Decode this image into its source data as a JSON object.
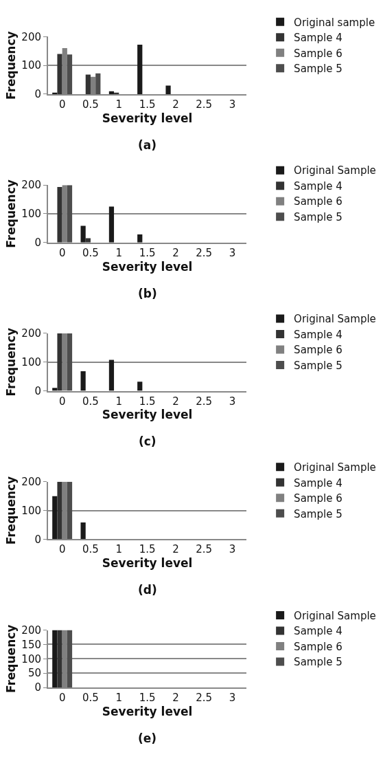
{
  "chart_data": [
    {
      "type": "bar",
      "categories": [
        "0",
        "0.5",
        "1",
        "1.5",
        "2",
        "2.5",
        "3"
      ],
      "xlabel": "Severity level",
      "ylabel": "Frequency",
      "ylim": [
        0,
        200
      ],
      "yticks": [
        0,
        100,
        200
      ],
      "grid": "y",
      "legend": "right",
      "annotations": [
        "(a)"
      ],
      "series": [
        {
          "name": "Original sample",
          "color": "#1a1a1a",
          "values": [
            5,
            0,
            10,
            172,
            30,
            0,
            0
          ]
        },
        {
          "name": "Sample 4",
          "color": "#333333",
          "values": [
            140,
            68,
            5,
            0,
            0,
            0,
            0
          ]
        },
        {
          "name": "Sample 6",
          "color": "#808080",
          "values": [
            160,
            60,
            0,
            0,
            0,
            0,
            0
          ]
        },
        {
          "name": "Sample 5",
          "color": "#4d4d4d",
          "values": [
            138,
            72,
            0,
            0,
            0,
            0,
            0
          ]
        }
      ]
    },
    {
      "type": "bar",
      "categories": [
        "0",
        "0.5",
        "1",
        "1.5",
        "2",
        "2.5",
        "3"
      ],
      "xlabel": "Severity level",
      "ylabel": "Frequency",
      "ylim": [
        0,
        200
      ],
      "yticks": [
        0,
        100,
        200
      ],
      "grid": "y",
      "legend": "right",
      "annotations": [
        "(b)"
      ],
      "series": [
        {
          "name": "Original Sample",
          "color": "#1a1a1a",
          "values": [
            null,
            58,
            125,
            28,
            0,
            0,
            0
          ]
        },
        {
          "name": "Sample 4",
          "color": "#333333",
          "values": [
            193,
            15,
            0,
            0,
            0,
            0,
            0
          ]
        },
        {
          "name": "Sample 6",
          "color": "#808080",
          "values": [
            200,
            null,
            0,
            0,
            0,
            0,
            0
          ]
        },
        {
          "name": "Sample 5",
          "color": "#4d4d4d",
          "values": [
            200,
            null,
            0,
            0,
            0,
            0,
            0
          ]
        }
      ]
    },
    {
      "type": "bar",
      "categories": [
        "0",
        "0.5",
        "1",
        "1.5",
        "2",
        "2.5",
        "3"
      ],
      "xlabel": "Severity level",
      "ylabel": "Frequency",
      "ylim": [
        0,
        200
      ],
      "yticks": [
        0,
        100,
        200
      ],
      "grid": "y",
      "legend": "right",
      "annotations": [
        "(c)"
      ],
      "series": [
        {
          "name": "Original Sample",
          "color": "#1a1a1a",
          "values": [
            10,
            68,
            108,
            32,
            0,
            0,
            0
          ]
        },
        {
          "name": "Sample 4",
          "color": "#333333",
          "values": [
            200,
            0,
            0,
            0,
            0,
            0,
            0
          ]
        },
        {
          "name": "Sample 6",
          "color": "#808080",
          "values": [
            200,
            0,
            0,
            0,
            0,
            0,
            0
          ]
        },
        {
          "name": "Sample 5",
          "color": "#4d4d4d",
          "values": [
            200,
            0,
            0,
            0,
            0,
            0,
            0
          ]
        }
      ]
    },
    {
      "type": "bar",
      "categories": [
        "0",
        "0.5",
        "1",
        "1.5",
        "2",
        "2.5",
        "3"
      ],
      "xlabel": "Severity level",
      "ylabel": "Frequency",
      "ylim": [
        0,
        200
      ],
      "yticks": [
        0,
        100,
        200
      ],
      "grid": "y",
      "legend": "right",
      "annotations": [
        "(d)"
      ],
      "series": [
        {
          "name": "Original Sample",
          "color": "#1a1a1a",
          "values": [
            150,
            58,
            0,
            0,
            0,
            0,
            0
          ]
        },
        {
          "name": "Sample 4",
          "color": "#333333",
          "values": [
            200,
            0,
            0,
            0,
            0,
            0,
            0
          ]
        },
        {
          "name": "Sample 6",
          "color": "#808080",
          "values": [
            200,
            0,
            0,
            0,
            0,
            0,
            0
          ]
        },
        {
          "name": "Sample 5",
          "color": "#4d4d4d",
          "values": [
            200,
            0,
            0,
            0,
            0,
            0,
            0
          ]
        }
      ]
    },
    {
      "type": "bar",
      "categories": [
        "0",
        "0.5",
        "1",
        "1.5",
        "2",
        "2.5",
        "3"
      ],
      "xlabel": "Severity level",
      "ylabel": "Frequency",
      "ylim": [
        0,
        200
      ],
      "yticks": [
        0,
        50,
        100,
        150,
        200
      ],
      "grid": "y",
      "legend": "right",
      "annotations": [
        "(e)"
      ],
      "series": [
        {
          "name": "Original Sample",
          "color": "#1a1a1a",
          "values": [
            200,
            0,
            0,
            0,
            0,
            0,
            0
          ]
        },
        {
          "name": "Sample 4",
          "color": "#333333",
          "values": [
            200,
            0,
            0,
            0,
            0,
            0,
            0
          ]
        },
        {
          "name": "Sample 6",
          "color": "#808080",
          "values": [
            200,
            0,
            0,
            0,
            0,
            0,
            0
          ]
        },
        {
          "name": "Sample 5",
          "color": "#4d4d4d",
          "values": [
            200,
            0,
            0,
            0,
            0,
            0,
            0
          ]
        }
      ]
    }
  ]
}
